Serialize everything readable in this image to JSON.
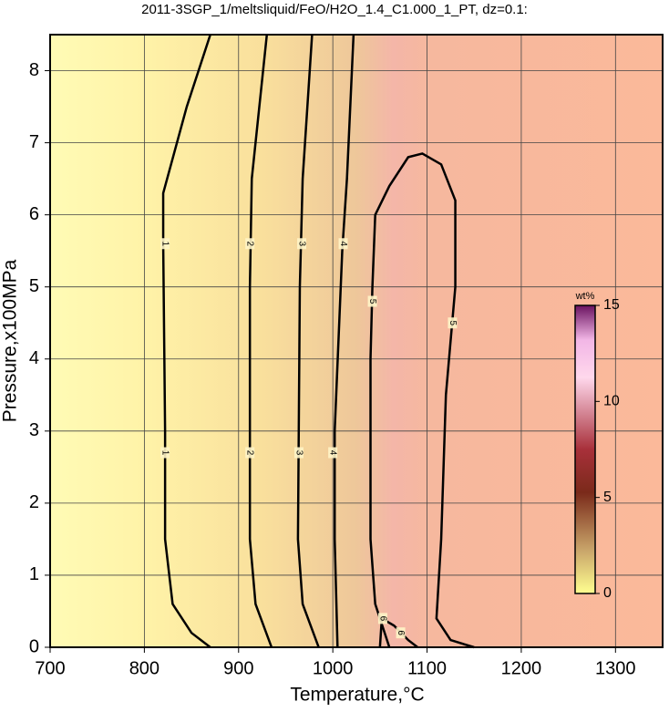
{
  "chart_data": {
    "type": "contour",
    "title": "2011-3SGP_1/meltsliquid/FeO/H2O_1.4_C1.000_1_PT, dz=0.1:",
    "xlabel": "Temperature,°C",
    "ylabel": "Pressure,x100MPa",
    "xlim": [
      700,
      1350
    ],
    "ylim": [
      0,
      8.5
    ],
    "xticks": [
      700,
      800,
      900,
      1000,
      1100,
      1200,
      1300
    ],
    "yticks": [
      0,
      1,
      2,
      3,
      4,
      5,
      6,
      7,
      8
    ],
    "grid": true,
    "line_color": "#000000",
    "contours": [
      {
        "level": 1,
        "x": [
          870,
          850,
          830,
          822,
          822,
          820,
          820,
          845,
          870
        ],
        "y": [
          0,
          0.2,
          0.6,
          1.5,
          3,
          5.6,
          6.3,
          7.5,
          8.5
        ],
        "labels": [
          {
            "x": 822,
            "y": 5.6
          },
          {
            "x": 822,
            "y": 2.7
          }
        ]
      },
      {
        "level": 2,
        "x": [
          935,
          918,
          912,
          912,
          914,
          930
        ],
        "y": [
          0,
          0.6,
          1.5,
          5,
          6.5,
          8.5
        ],
        "labels": [
          {
            "x": 912,
            "y": 5.6
          },
          {
            "x": 912,
            "y": 2.7
          }
        ]
      },
      {
        "level": 3,
        "x": [
          985,
          968,
          963,
          965,
          968,
          978
        ],
        "y": [
          0,
          0.6,
          1.5,
          5,
          6.5,
          8.5
        ],
        "labels": [
          {
            "x": 967,
            "y": 5.6
          },
          {
            "x": 964,
            "y": 2.7
          }
        ]
      },
      {
        "level": 4,
        "x": [
          1005,
          1002,
          1002,
          1010,
          1015,
          1022
        ],
        "y": [
          0,
          1.5,
          3,
          5.5,
          6.5,
          8.5
        ],
        "labels": [
          {
            "x": 1011,
            "y": 5.6
          },
          {
            "x": 1000,
            "y": 2.7
          }
        ]
      },
      {
        "level": 5,
        "x": [
          1060,
          1045,
          1040,
          1040,
          1042,
          1045,
          1060,
          1080,
          1095,
          1115,
          1130,
          1130,
          1120,
          1115,
          1110,
          1125,
          1150
        ],
        "y": [
          0,
          0.6,
          1.5,
          4,
          5,
          6,
          6.4,
          6.8,
          6.85,
          6.7,
          6.2,
          5,
          3.5,
          1.5,
          0.4,
          0.1,
          0
        ],
        "labels": [
          {
            "x": 1042,
            "y": 4.8
          },
          {
            "x": 1127,
            "y": 4.5
          }
        ]
      },
      {
        "level": 6,
        "x": [
          1050,
          1052,
          1065,
          1080,
          1090
        ],
        "y": [
          0,
          0.4,
          0.3,
          0.1,
          0
        ],
        "labels": [
          {
            "x": 1053,
            "y": 0.4
          },
          {
            "x": 1072,
            "y": 0.2
          }
        ]
      }
    ],
    "colorbar": {
      "label": "wt%",
      "lim": [
        0,
        15
      ],
      "ticks": [
        0,
        5,
        10,
        15
      ]
    }
  }
}
